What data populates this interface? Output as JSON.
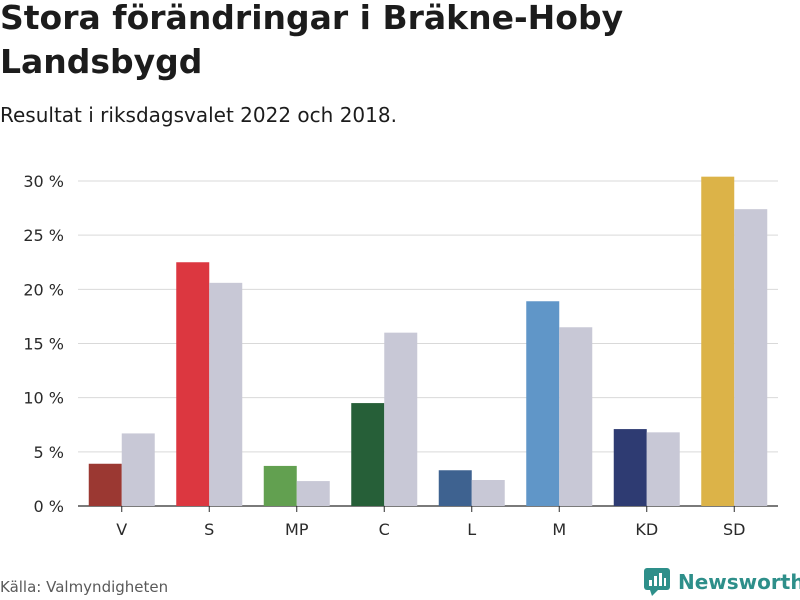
{
  "title": "Stora förändringar i Bräkne-Hoby Landsbygd",
  "subtitle": "Resultat i riksdagsvalet 2022 och 2018.",
  "source": "Källa: Valmyndigheten",
  "brand": "Newsworthy",
  "chart_data": {
    "type": "bar",
    "categories": [
      "V",
      "S",
      "MP",
      "C",
      "L",
      "M",
      "KD",
      "SD"
    ],
    "series": [
      {
        "values": [
          3.9,
          22.5,
          3.7,
          9.5,
          3.3,
          18.9,
          7.1,
          30.4
        ]
      },
      {
        "values": [
          6.7,
          20.6,
          2.3,
          16.0,
          2.4,
          16.5,
          6.8,
          27.4
        ]
      }
    ],
    "bar_colors_2022": [
      "#9b3832",
      "#dc3740",
      "#62a050",
      "#265f38",
      "#3e6290",
      "#6096c8",
      "#2e3b72",
      "#dcb348"
    ],
    "color_2018": "#c8c8d6",
    "y_ticks": [
      0,
      5,
      10,
      15,
      20,
      25,
      30
    ],
    "y_tick_labels": [
      "0 %",
      "5 %",
      "10 %",
      "15 %",
      "20 %",
      "25 %",
      "30 %"
    ],
    "ylim": [
      0,
      30
    ],
    "grid": true,
    "legend": "none"
  }
}
